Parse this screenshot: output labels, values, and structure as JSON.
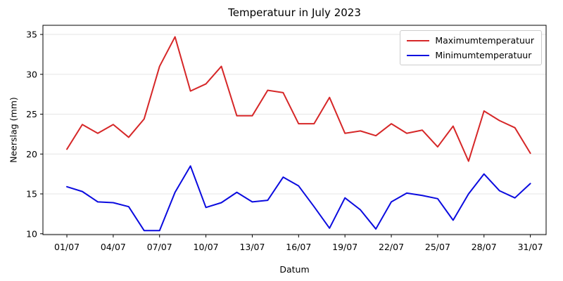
{
  "chart_data": {
    "type": "line",
    "title": "Temperatuur in July 2023",
    "xlabel": "Datum",
    "ylabel": "Neerslag (mm)",
    "grid": true,
    "legend_position": "upper right",
    "background_color": "#ffffff",
    "grid_color": "#e5e5e5",
    "spine_color": "#000000",
    "xlim": [
      -0.55,
      32.02
    ],
    "ylim": [
      9.89,
      36.15
    ],
    "y_ticks": [
      10,
      15,
      20,
      25,
      30,
      35
    ],
    "x_tick_days": [
      1,
      4,
      7,
      10,
      13,
      16,
      19,
      22,
      25,
      28,
      31
    ],
    "x_tick_labels": [
      "01/07",
      "04/07",
      "07/07",
      "10/07",
      "13/07",
      "16/07",
      "19/07",
      "22/07",
      "25/07",
      "28/07",
      "31/07"
    ],
    "days": [
      1,
      2,
      3,
      4,
      5,
      6,
      7,
      8,
      9,
      10,
      11,
      12,
      13,
      14,
      15,
      16,
      17,
      18,
      19,
      20,
      21,
      22,
      23,
      24,
      25,
      26,
      27,
      28,
      29,
      30,
      31
    ],
    "series": [
      {
        "name": "Maximumtemperatuur",
        "color": "#d62728",
        "values": [
          20.6,
          23.7,
          22.6,
          23.7,
          22.1,
          24.4,
          31.0,
          34.7,
          27.9,
          28.8,
          31.0,
          24.8,
          24.8,
          28.0,
          27.7,
          23.8,
          23.8,
          27.1,
          22.6,
          22.9,
          22.3,
          23.8,
          22.6,
          23.0,
          20.9,
          23.5,
          19.1,
          25.4,
          24.2,
          23.3,
          20.1
        ]
      },
      {
        "name": "Minimumtemperatuur",
        "color": "#0b0bdf",
        "values": [
          15.9,
          15.3,
          14.0,
          13.9,
          13.4,
          10.4,
          10.4,
          15.2,
          18.5,
          13.3,
          13.9,
          15.2,
          14.0,
          14.2,
          17.1,
          16.0,
          13.4,
          10.7,
          14.5,
          13.0,
          10.6,
          14.0,
          15.1,
          14.8,
          14.4,
          11.7,
          15.0,
          17.5,
          15.4,
          14.5,
          16.3
        ]
      }
    ]
  }
}
